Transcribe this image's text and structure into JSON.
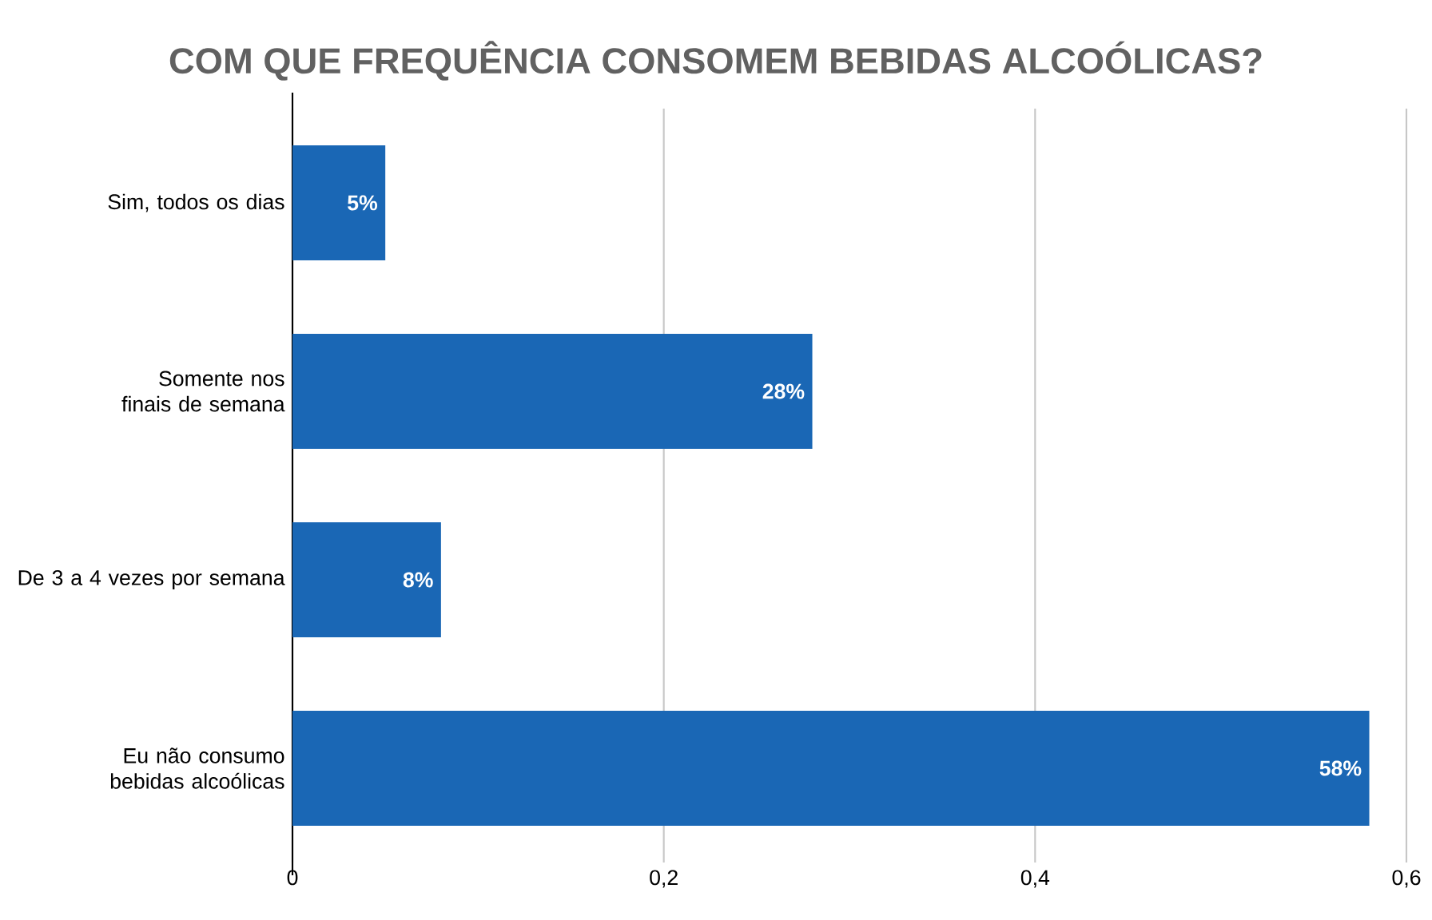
{
  "chart_data": {
    "type": "bar",
    "orientation": "horizontal",
    "title": "COM QUE FREQUÊNCIA CONSOMEM BEBIDAS ALCOÓLICAS?",
    "categories": [
      "Sim, todos os dias",
      "Somente nos finais de semana",
      "De 3 a 4 vezes por semana",
      "Eu não consumo bebidas alcoólicas"
    ],
    "values": [
      0.05,
      0.28,
      0.08,
      0.58
    ],
    "value_labels": [
      "5%",
      "28%",
      "8%",
      "58%"
    ],
    "color": "#1a67b5",
    "xlim": [
      0,
      0.6
    ],
    "xticks": [
      0,
      {
        "value": 0.2,
        "label": "0,2"
      },
      {
        "value": 0.4,
        "label": "0,4"
      },
      {
        "value": 0.6,
        "label": "0,6"
      }
    ],
    "grid": "x"
  }
}
